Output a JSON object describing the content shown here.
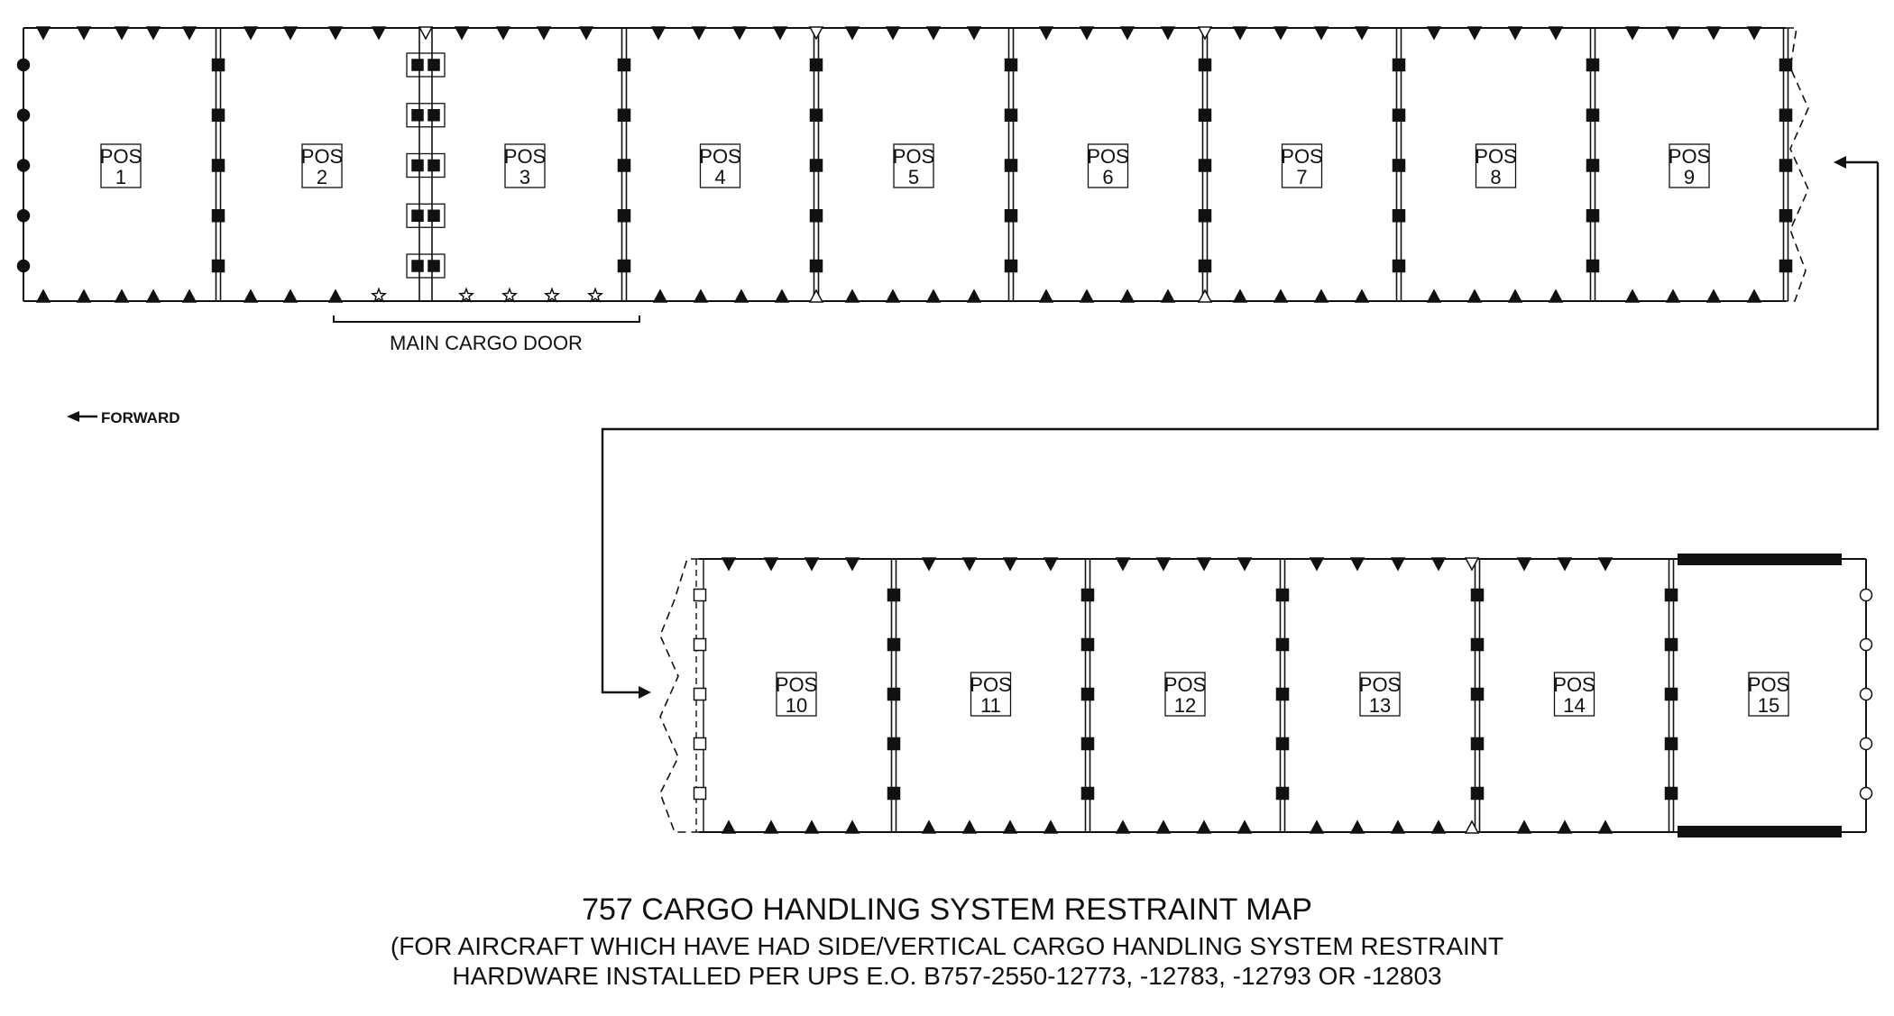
{
  "diagram": {
    "title": "757 CARGO HANDLING SYSTEM RESTRAINT MAP",
    "subtitle_line1": "(FOR AIRCRAFT WHICH HAVE HAD SIDE/VERTICAL CARGO HANDLING SYSTEM RESTRAINT",
    "subtitle_line2": "HARDWARE INSTALLED PER UPS E.O. B757-2550-12773, -12783, -12793 OR -12803",
    "door_label": "MAIN CARGO DOOR",
    "forward_label": "FORWARD",
    "pos_prefix": "POS",
    "positions_row1": [
      "1",
      "2",
      "3",
      "4",
      "5",
      "6",
      "7",
      "8",
      "9"
    ],
    "positions_row2": [
      "10",
      "11",
      "12",
      "13",
      "14",
      "15"
    ]
  }
}
